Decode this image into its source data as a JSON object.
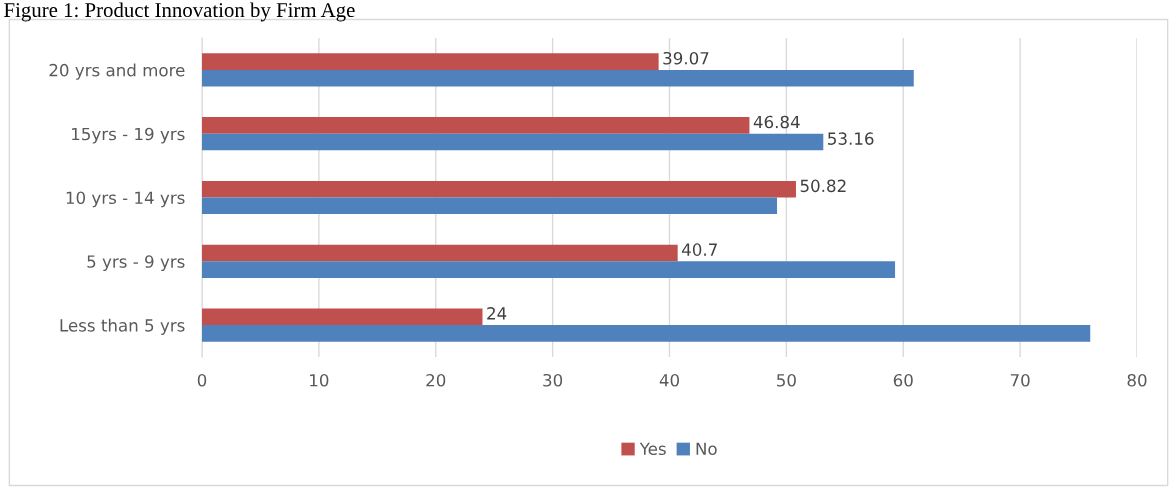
{
  "chart_data": {
    "type": "bar",
    "orientation": "horizontal",
    "title": "Figure 1: Product Innovation by Firm Age",
    "categories": [
      "20 yrs and more",
      "15yrs - 19 yrs",
      "10 yrs - 14 yrs",
      "5 yrs - 9 yrs",
      "Less than 5 yrs"
    ],
    "series": [
      {
        "name": "Yes",
        "color": "#c0504d",
        "values": [
          39.07,
          46.84,
          50.82,
          40.7,
          24
        ],
        "value_labels": [
          "39.07",
          "46.84",
          "50.82",
          "40.7",
          "24"
        ]
      },
      {
        "name": "No",
        "color": "#4f81bd",
        "values": [
          60.9,
          53.16,
          49.2,
          59.3,
          76
        ],
        "value_labels": [
          null,
          "53.16",
          null,
          null,
          null
        ]
      }
    ],
    "xlim": [
      0,
      80
    ],
    "xticks": [
      0,
      10,
      20,
      30,
      40,
      50,
      60,
      70,
      80
    ],
    "grid": "x",
    "legend": "bottom"
  }
}
